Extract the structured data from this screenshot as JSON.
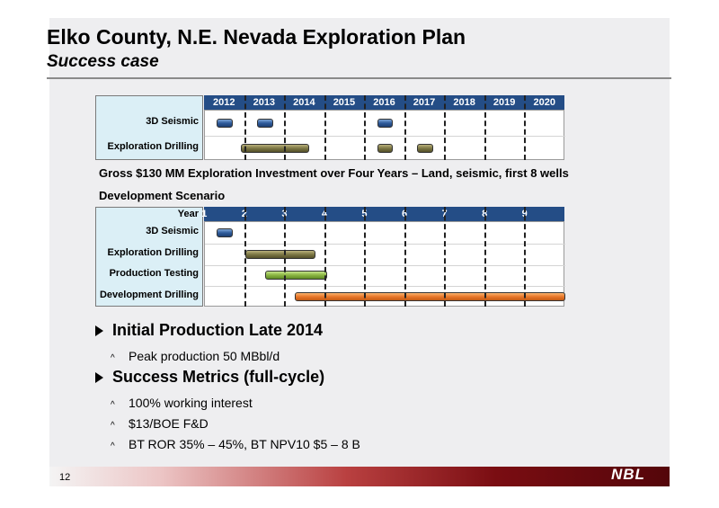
{
  "title": "Elko County, N.E. Nevada Exploration Plan",
  "subtitle": "Success case",
  "chart_data": [
    {
      "type": "gantt",
      "columns": [
        "2012",
        "2013",
        "2014",
        "2015",
        "2016",
        "2017",
        "2018",
        "2019",
        "2020"
      ],
      "rows": [
        {
          "label": "3D Seismic",
          "bars": [
            [
              2012.3,
              2012.7
            ],
            [
              2013.3,
              2013.7
            ],
            [
              2016.3,
              2016.7
            ]
          ]
        },
        {
          "label": "Exploration Drilling",
          "bars": [
            [
              2012.9,
              2014.6
            ],
            [
              2016.3,
              2016.7
            ],
            [
              2017.3,
              2017.7
            ]
          ]
        }
      ]
    },
    {
      "type": "gantt",
      "header_label": "Year",
      "columns": [
        "1",
        "2",
        "3",
        "4",
        "5",
        "6",
        "7",
        "8",
        "9"
      ],
      "rows": [
        {
          "label": "3D Seismic",
          "bars": [
            [
              0.3,
              0.7
            ]
          ]
        },
        {
          "label": "Exploration Drilling",
          "bars": [
            [
              1.0,
              2.75
            ]
          ]
        },
        {
          "label": "Production Testing",
          "bars": [
            [
              1.5,
              3.05
            ]
          ]
        },
        {
          "label": "Development Drilling",
          "bars": [
            [
              2.25,
              9.0
            ]
          ]
        }
      ]
    }
  ],
  "investment_text": "Gross $130 MM Exploration Investment over Four Years – Land, seismic, first 8 wells",
  "dev_scenario": "Development Scenario",
  "bullets": [
    {
      "text": "Initial Production Late 2014",
      "sub": [
        "Peak production 50 MBbl/d"
      ]
    },
    {
      "text": "Success Metrics (full-cycle)",
      "sub": [
        "100% working interest",
        "$13/BOE F&D",
        "BT ROR 35% – 45%, BT NPV10 $5 – 8 B"
      ]
    }
  ],
  "page_number": "12",
  "logo": "NBL"
}
